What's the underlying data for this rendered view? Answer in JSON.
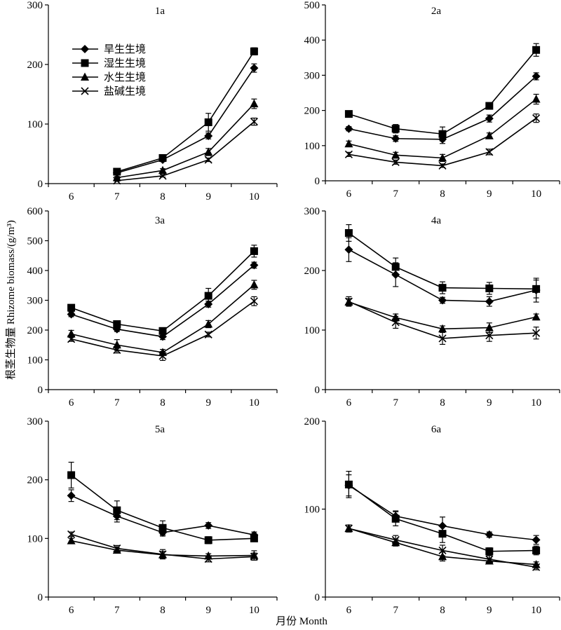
{
  "figure": {
    "ylabel": "根茎生物量 Rhizome biomass/(g/m³)",
    "xlabel": "月份 Month"
  },
  "legend": {
    "placement": "top-left (inside panel 1a)",
    "entries": [
      {
        "label": "旱生生境",
        "marker": "diamond"
      },
      {
        "label": "湿生生境",
        "marker": "square"
      },
      {
        "label": "水生生境",
        "marker": "triangle"
      },
      {
        "label": "盐碱生境",
        "marker": "cross"
      }
    ]
  },
  "chart_data": [
    {
      "type": "line",
      "title": "1a",
      "x": [
        6,
        7,
        8,
        9,
        10
      ],
      "ylim": [
        0,
        300
      ],
      "yticks": [
        0,
        100,
        200,
        300
      ],
      "grid": false,
      "series": [
        {
          "name": "旱生生境",
          "marker": "diamond",
          "values": [
            null,
            18,
            40,
            80,
            194
          ],
          "errors": [
            null,
            2,
            3,
            5,
            7
          ]
        },
        {
          "name": "湿生生境",
          "marker": "square",
          "values": [
            null,
            20,
            43,
            103,
            222
          ],
          "errors": [
            null,
            3,
            4,
            15,
            6
          ]
        },
        {
          "name": "水生生境",
          "marker": "triangle",
          "values": [
            null,
            10,
            22,
            53,
            134
          ],
          "errors": [
            null,
            2,
            3,
            6,
            8
          ]
        },
        {
          "name": "盐碱生境",
          "marker": "cross",
          "values": [
            null,
            5,
            13,
            40,
            104
          ],
          "errors": [
            null,
            1,
            2,
            3,
            6
          ]
        }
      ]
    },
    {
      "type": "line",
      "title": "2a",
      "x": [
        6,
        7,
        8,
        9,
        10
      ],
      "ylim": [
        0,
        500
      ],
      "yticks": [
        0,
        100,
        200,
        300,
        400,
        500
      ],
      "grid": false,
      "series": [
        {
          "name": "旱生生境",
          "marker": "diamond",
          "values": [
            148,
            120,
            118,
            177,
            297
          ],
          "errors": [
            6,
            8,
            12,
            10,
            10
          ]
        },
        {
          "name": "湿生生境",
          "marker": "square",
          "values": [
            190,
            148,
            133,
            213,
            372
          ],
          "errors": [
            6,
            12,
            20,
            6,
            18
          ]
        },
        {
          "name": "水生生境",
          "marker": "triangle",
          "values": [
            105,
            73,
            65,
            128,
            232
          ],
          "errors": [
            8,
            8,
            10,
            8,
            14
          ]
        },
        {
          "name": "盐碱生境",
          "marker": "cross",
          "values": [
            75,
            53,
            43,
            82,
            178
          ],
          "errors": [
            6,
            6,
            5,
            8,
            12
          ]
        }
      ]
    },
    {
      "type": "line",
      "title": "3a",
      "x": [
        6,
        7,
        8,
        9,
        10
      ],
      "ylim": [
        0,
        600
      ],
      "yticks": [
        0,
        100,
        200,
        300,
        400,
        500,
        600
      ],
      "grid": false,
      "series": [
        {
          "name": "旱生生境",
          "marker": "diamond",
          "values": [
            253,
            203,
            178,
            287,
            418
          ],
          "errors": [
            8,
            8,
            10,
            10,
            10
          ]
        },
        {
          "name": "湿生生境",
          "marker": "square",
          "values": [
            275,
            220,
            197,
            315,
            465
          ],
          "errors": [
            10,
            10,
            10,
            25,
            20
          ]
        },
        {
          "name": "水生生境",
          "marker": "triangle",
          "values": [
            187,
            150,
            125,
            220,
            352
          ],
          "errors": [
            12,
            18,
            10,
            12,
            15
          ]
        },
        {
          "name": "盐碱生境",
          "marker": "cross",
          "values": [
            170,
            133,
            113,
            185,
            297
          ],
          "errors": [
            8,
            10,
            15,
            8,
            15
          ]
        }
      ]
    },
    {
      "type": "line",
      "title": "4a",
      "x": [
        6,
        7,
        8,
        9,
        10
      ],
      "ylim": [
        0,
        300
      ],
      "yticks": [
        0,
        100,
        200,
        300
      ],
      "grid": false,
      "series": [
        {
          "name": "旱生生境",
          "marker": "diamond",
          "values": [
            235,
            193,
            150,
            148,
            167
          ],
          "errors": [
            20,
            20,
            5,
            8,
            20
          ]
        },
        {
          "name": "湿生生境",
          "marker": "square",
          "values": [
            263,
            206,
            171,
            170,
            169
          ],
          "errors": [
            14,
            15,
            10,
            10,
            15
          ]
        },
        {
          "name": "水生生境",
          "marker": "triangle",
          "values": [
            147,
            121,
            102,
            104,
            122
          ],
          "errors": [
            6,
            6,
            5,
            8,
            5
          ]
        },
        {
          "name": "盐碱生境",
          "marker": "cross",
          "values": [
            148,
            113,
            86,
            91,
            95
          ],
          "errors": [
            8,
            10,
            10,
            10,
            10
          ]
        }
      ]
    },
    {
      "type": "line",
      "title": "5a",
      "x": [
        6,
        7,
        8,
        9,
        10
      ],
      "ylim": [
        0,
        300
      ],
      "yticks": [
        0,
        100,
        200,
        300
      ],
      "grid": false,
      "series": [
        {
          "name": "旱生生境",
          "marker": "diamond",
          "values": [
            173,
            138,
            110,
            122,
            106
          ],
          "errors": [
            10,
            10,
            6,
            5,
            5
          ]
        },
        {
          "name": "湿生生境",
          "marker": "square",
          "values": [
            208,
            148,
            118,
            97,
            100
          ],
          "errors": [
            22,
            16,
            12,
            6,
            5
          ]
        },
        {
          "name": "水生生境",
          "marker": "triangle",
          "values": [
            96,
            80,
            72,
            70,
            71
          ],
          "errors": [
            4,
            4,
            6,
            4,
            8
          ]
        },
        {
          "name": "盐碱生境",
          "marker": "cross",
          "values": [
            107,
            83,
            73,
            65,
            69
          ],
          "errors": [
            4,
            5,
            8,
            5,
            6
          ]
        }
      ]
    },
    {
      "type": "line",
      "title": "6a",
      "x": [
        6,
        7,
        8,
        9,
        10
      ],
      "ylim": [
        0,
        200
      ],
      "yticks": [
        0,
        100,
        200
      ],
      "grid": false,
      "series": [
        {
          "name": "旱生生境",
          "marker": "diamond",
          "values": [
            127,
            92,
            81,
            71,
            65
          ],
          "errors": [
            12,
            6,
            10,
            3,
            5
          ]
        },
        {
          "name": "湿生生境",
          "marker": "square",
          "values": [
            128,
            89,
            72,
            52,
            53
          ],
          "errors": [
            15,
            8,
            10,
            4,
            5
          ]
        },
        {
          "name": "水生生境",
          "marker": "triangle",
          "values": [
            78,
            62,
            46,
            41,
            37
          ],
          "errors": [
            4,
            4,
            5,
            3,
            3
          ]
        },
        {
          "name": "盐碱生境",
          "marker": "cross",
          "values": [
            78,
            65,
            53,
            43,
            34
          ],
          "errors": [
            4,
            5,
            6,
            4,
            3
          ]
        }
      ]
    }
  ]
}
